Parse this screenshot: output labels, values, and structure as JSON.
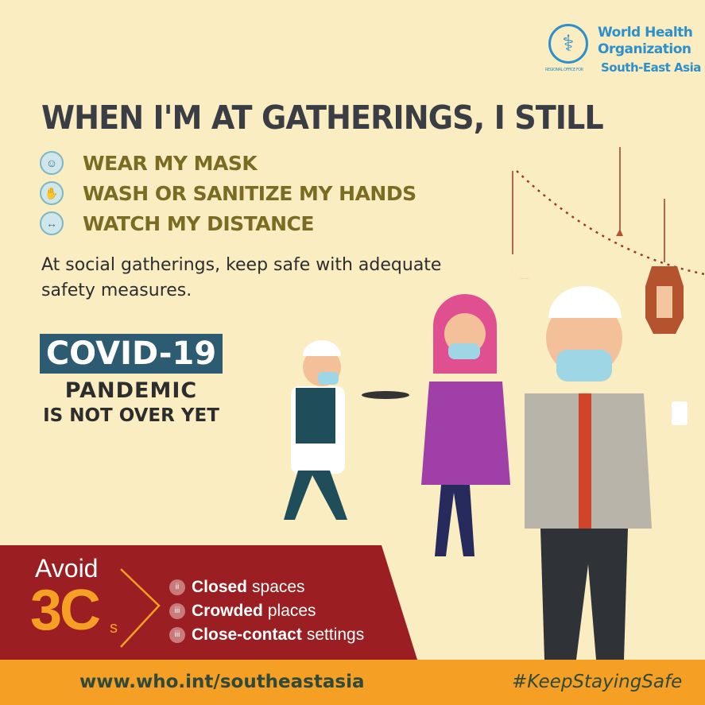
{
  "logo": {
    "line1": "World Health",
    "line2": "Organization",
    "regional": "REGIONAL OFFICE FOR",
    "region": "South-East Asia"
  },
  "title": "WHEN I'M AT GATHERINGS, I STILL",
  "bullets": [
    {
      "icon": "mask-icon",
      "label": "WEAR MY MASK"
    },
    {
      "icon": "handwash-icon",
      "label": "WASH OR SANITIZE MY HANDS"
    },
    {
      "icon": "distance-icon",
      "label": "WATCH MY DISTANCE"
    }
  ],
  "description": "At social gatherings, keep safe with adequate safety measures.",
  "covid": {
    "badge": "COVID-19",
    "line1": "PANDEMIC",
    "line2": "IS NOT OVER YET"
  },
  "avoid": {
    "label": "Avoid",
    "big": "3C",
    "suffix": "s",
    "items": [
      {
        "bold": "Closed",
        "rest": "spaces"
      },
      {
        "bold": "Crowded",
        "rest": "places"
      },
      {
        "bold": "Close-contact",
        "rest": "settings"
      }
    ]
  },
  "footer": {
    "url": "www.who.int/southeastasia",
    "hashtag": "#KeepStayingSafe"
  },
  "colors": {
    "background": "#faedc2",
    "band": "#9b1f22",
    "accent": "#f5a024",
    "title": "#3a3e44",
    "who_blue": "#2f8fc9"
  }
}
